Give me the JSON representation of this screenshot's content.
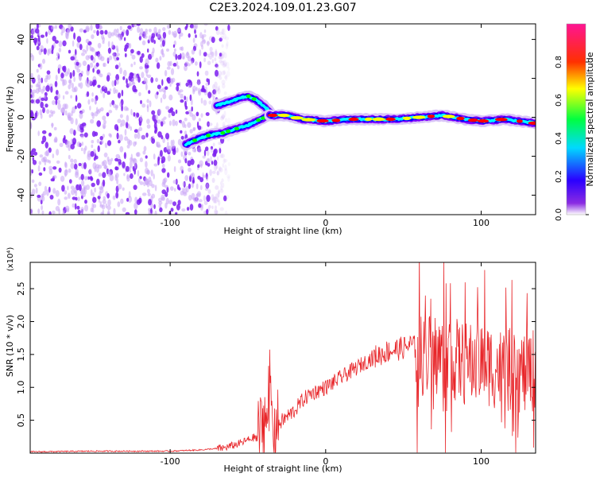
{
  "title": "C2E3.2024.109.01.23.G07",
  "chart_data": [
    {
      "type": "heatmap",
      "xlabel": "Height of straight line (km)",
      "ylabel": "Frequency (Hz)",
      "xlim": [
        -190,
        135
      ],
      "ylim": [
        -50,
        48
      ],
      "xticks": [
        -100,
        0,
        100
      ],
      "yticks": [
        -40,
        -20,
        0,
        20,
        40
      ],
      "colorbar": {
        "label": "Normalized spectral amplitude",
        "range": [
          0.0,
          1.0
        ],
        "ticks": [
          0.0,
          0.2,
          0.4,
          0.6,
          0.8
        ],
        "tick_labels": [
          "0.0",
          "0.2",
          "0.4",
          "0.6",
          "0.8"
        ],
        "colormap": [
          "#ffffff",
          "#7f00ff",
          "#0000ff",
          "#00ffff",
          "#00ff00",
          "#ffff00",
          "#ff0000",
          "#ff1493"
        ]
      },
      "noise_region_x": [
        -190,
        -68
      ],
      "tracks": [
        {
          "name": "upper",
          "x": [
            -70,
            -62,
            -55,
            -50,
            -45,
            -40,
            -36
          ],
          "y": [
            6,
            8,
            10,
            11,
            9,
            6,
            3
          ]
        },
        {
          "name": "lower",
          "x": [
            -90,
            -82,
            -74,
            -66,
            -58,
            -50,
            -42,
            -36
          ],
          "y": [
            -14,
            -11,
            -9,
            -8,
            -6,
            -4,
            -1,
            1
          ]
        },
        {
          "name": "main",
          "x": [
            -36,
            -25,
            -15,
            0,
            15,
            30,
            45,
            60,
            75,
            90,
            100,
            115,
            125,
            135
          ],
          "y": [
            1,
            1,
            -1,
            -2,
            -1,
            -1,
            -1,
            0,
            1,
            -1,
            -2,
            -1,
            -2,
            -3
          ]
        }
      ]
    },
    {
      "type": "line",
      "xlabel": "Height of straight line (km)",
      "ylabel": "SNR (10 * v/v)",
      "multiplier": "(x10⁴)",
      "xlim": [
        -190,
        135
      ],
      "ylim": [
        0,
        2.9
      ],
      "xticks": [
        -100,
        0,
        100
      ],
      "yticks": [
        0.5,
        1.0,
        1.5,
        2.0,
        2.5
      ],
      "ytick_labels": [
        "0.5",
        "1.0",
        "1.5",
        "2.0",
        "2.5"
      ],
      "color": "#e8262a",
      "series": [
        {
          "x": [
            -190,
            -150,
            -100,
            -80,
            -65,
            -55,
            -45,
            -40,
            -37,
            -35,
            -33,
            -30,
            -25,
            -20,
            -15,
            -10,
            -5,
            0,
            10,
            20,
            30,
            40,
            50,
            55,
            58,
            60,
            70,
            80,
            90,
            100,
            110,
            120,
            130,
            135
          ],
          "y": [
            0.02,
            0.03,
            0.03,
            0.05,
            0.08,
            0.15,
            0.25,
            0.45,
            0.8,
            0.6,
            0.4,
            0.45,
            0.55,
            0.65,
            0.8,
            0.9,
            0.95,
            1.0,
            1.15,
            1.3,
            1.45,
            1.55,
            1.6,
            1.65,
            1.6,
            1.5,
            1.5,
            1.45,
            1.35,
            1.4,
            1.3,
            1.25,
            1.2,
            1.3
          ]
        }
      ]
    }
  ]
}
